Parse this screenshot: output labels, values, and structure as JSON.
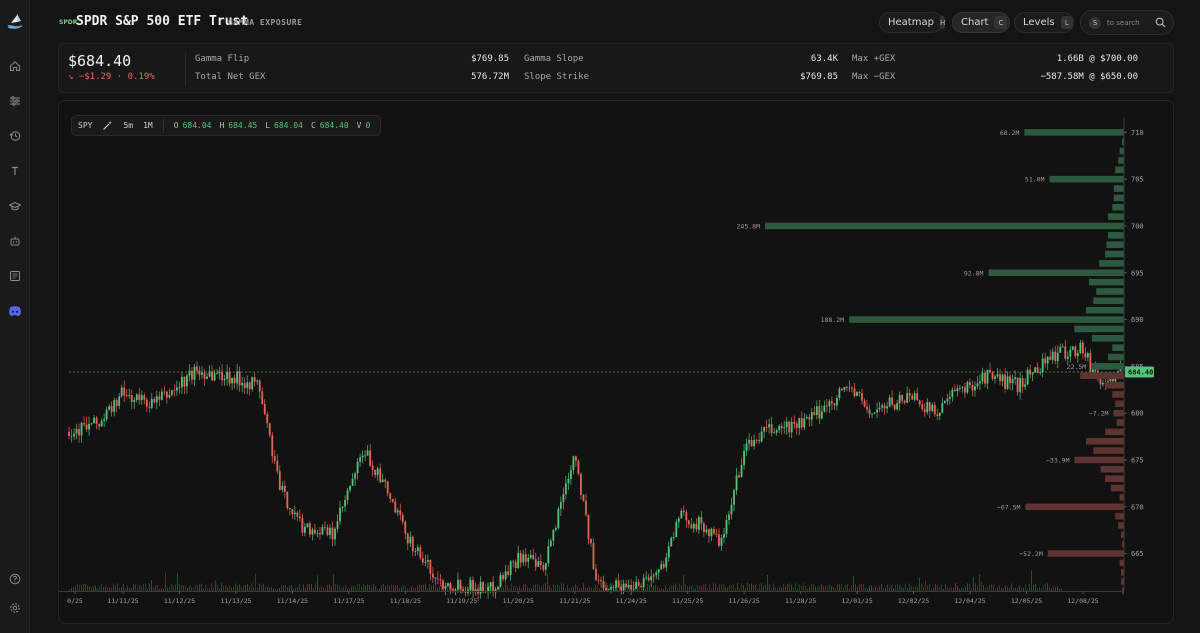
{
  "nav": {
    "icons": [
      "home-icon",
      "sliders-icon",
      "history-icon",
      "text-icon",
      "graduation-icon",
      "bot-icon",
      "newspaper-icon",
      "discord-icon"
    ],
    "bottom_icons": [
      "help-icon",
      "settings-icon"
    ]
  },
  "header": {
    "badge": "SPDR",
    "title": "SPDR S&P 500 ETF Trust",
    "subtitle": "GAMMA EXPOSURE",
    "buttons": [
      {
        "label": "Heatmap",
        "key": "H"
      },
      {
        "label": "Chart",
        "key": "C"
      },
      {
        "label": "Levels",
        "key": "L"
      }
    ],
    "search_key": "S",
    "search_placeholder": "to search"
  },
  "stats": {
    "price": "$684.40",
    "change": "↘ −$1.29 · 0.19%",
    "items": [
      {
        "label": "Gamma Flip",
        "value": "$769.85"
      },
      {
        "label": "Total Net GEX",
        "value": "576.72M"
      },
      {
        "label": "Gamma Slope",
        "value": "63.4K"
      },
      {
        "label": "Slope Strike",
        "value": "$769.85"
      },
      {
        "label": "Max +GEX",
        "value": "1.66B @ $700.00"
      },
      {
        "label": "Max −GEX",
        "value": "−587.58M @ $650.00"
      }
    ]
  },
  "toolbar": {
    "symbol": "SPY",
    "interval": "5m",
    "range": "1M",
    "ohlc": [
      {
        "k": "O",
        "v": "684.04"
      },
      {
        "k": "H",
        "v": "684.45"
      },
      {
        "k": "L",
        "v": "684.04"
      },
      {
        "k": "C",
        "v": "684.40"
      },
      {
        "k": "V",
        "v": "0"
      }
    ]
  },
  "colors": {
    "up": "#58c27a",
    "down": "#e0685a",
    "pos_gex": "#2d5a3f",
    "neg_gex": "#5e3331",
    "current_price_tag": "#58c27a"
  },
  "chart_data": {
    "type": "candlestick-with-gex-profile",
    "current_price": 684.4,
    "current_price_label": "684.40",
    "y_range": [
      661,
      711
    ],
    "y_ticks": [
      710,
      705,
      700,
      695,
      690,
      685,
      680,
      675,
      670,
      665
    ],
    "x_ticks": [
      "0/25",
      "11/11/25",
      "11/12/25",
      "11/13/25",
      "11/14/25",
      "11/17/25",
      "11/18/25",
      "11/19/25",
      "11/20/25",
      "11/21/25",
      "11/24/25",
      "11/25/25",
      "11/26/25",
      "11/28/25",
      "12/01/25",
      "12/02/25",
      "12/04/25",
      "12/05/25",
      "12/08/25"
    ],
    "price_path": [
      [
        0,
        678
      ],
      [
        0.03,
        679
      ],
      [
        0.05,
        682
      ],
      [
        0.08,
        681
      ],
      [
        0.1,
        682.5
      ],
      [
        0.12,
        684.5
      ],
      [
        0.15,
        684
      ],
      [
        0.18,
        683
      ],
      [
        0.2,
        672
      ],
      [
        0.22,
        668
      ],
      [
        0.25,
        667
      ],
      [
        0.28,
        676
      ],
      [
        0.3,
        672
      ],
      [
        0.32,
        667
      ],
      [
        0.35,
        662
      ],
      [
        0.4,
        661.2
      ],
      [
        0.43,
        665
      ],
      [
        0.45,
        663
      ],
      [
        0.47,
        672
      ],
      [
        0.48,
        676
      ],
      [
        0.5,
        662
      ],
      [
        0.53,
        661.5
      ],
      [
        0.56,
        663
      ],
      [
        0.58,
        669
      ],
      [
        0.6,
        668
      ],
      [
        0.62,
        666
      ],
      [
        0.64,
        676
      ],
      [
        0.66,
        678
      ],
      [
        0.7,
        679
      ],
      [
        0.72,
        681
      ],
      [
        0.74,
        683
      ],
      [
        0.76,
        680
      ],
      [
        0.78,
        681
      ],
      [
        0.8,
        682
      ],
      [
        0.82,
        680
      ],
      [
        0.84,
        682
      ],
      [
        0.87,
        684
      ],
      [
        0.9,
        683
      ],
      [
        0.93,
        686
      ],
      [
        0.96,
        687
      ],
      [
        0.98,
        683
      ],
      [
        1.0,
        684.4
      ]
    ],
    "gex_labeled": [
      {
        "strike": 710,
        "value": 68.2,
        "label": "68.2M"
      },
      {
        "strike": 705,
        "value": 51.0,
        "label": "51.0M"
      },
      {
        "strike": 700,
        "value": 245.8,
        "label": "245.8M"
      },
      {
        "strike": 695,
        "value": 92.8,
        "label": "92.8M"
      },
      {
        "strike": 690,
        "value": 188.2,
        "label": "188.2M"
      },
      {
        "strike": 685,
        "value": 22.5,
        "label": "22.5M"
      },
      {
        "strike": 680,
        "value": -7.2,
        "label": "−7.2M"
      },
      {
        "strike": 675,
        "value": -33.9,
        "label": "−33.9M"
      },
      {
        "strike": 670,
        "value": -67.5,
        "label": "−67.5M"
      },
      {
        "strike": 665,
        "value": -52.2,
        "label": "−52.2M"
      }
    ],
    "gex_other": [
      {
        "strike": 709,
        "value": 1
      },
      {
        "strike": 708,
        "value": 3
      },
      {
        "strike": 707,
        "value": 4
      },
      {
        "strike": 706,
        "value": 6
      },
      {
        "strike": 704,
        "value": 7
      },
      {
        "strike": 703,
        "value": 7
      },
      {
        "strike": 702,
        "value": 8
      },
      {
        "strike": 701,
        "value": 11
      },
      {
        "strike": 699,
        "value": 11
      },
      {
        "strike": 698,
        "value": 12
      },
      {
        "strike": 697,
        "value": 13
      },
      {
        "strike": 696,
        "value": 17
      },
      {
        "strike": 694,
        "value": 24
      },
      {
        "strike": 693,
        "value": 19
      },
      {
        "strike": 692,
        "value": 21
      },
      {
        "strike": 691,
        "value": 26
      },
      {
        "strike": 689,
        "value": 34
      },
      {
        "strike": 688,
        "value": 22
      },
      {
        "strike": 687,
        "value": 8
      },
      {
        "strike": 686,
        "value": 11
      },
      {
        "strike": 684,
        "value": -30
      },
      {
        "strike": 683,
        "value": -13
      },
      {
        "strike": 682,
        "value": -8
      },
      {
        "strike": 681,
        "value": -6
      },
      {
        "strike": 679,
        "value": -5
      },
      {
        "strike": 678,
        "value": -13
      },
      {
        "strike": 677,
        "value": -26
      },
      {
        "strike": 676,
        "value": -21
      },
      {
        "strike": 674,
        "value": -16
      },
      {
        "strike": 673,
        "value": -13
      },
      {
        "strike": 672,
        "value": -9
      },
      {
        "strike": 671,
        "value": -3
      },
      {
        "strike": 669,
        "value": -6
      },
      {
        "strike": 668,
        "value": -4
      },
      {
        "strike": 667,
        "value": -2
      },
      {
        "strike": 666,
        "value": -1
      },
      {
        "strike": 664,
        "value": -3
      },
      {
        "strike": 663,
        "value": -2
      },
      {
        "strike": 662,
        "value": -2
      },
      {
        "strike": 661,
        "value": -1
      }
    ],
    "gex_max_ref": 245.8
  }
}
